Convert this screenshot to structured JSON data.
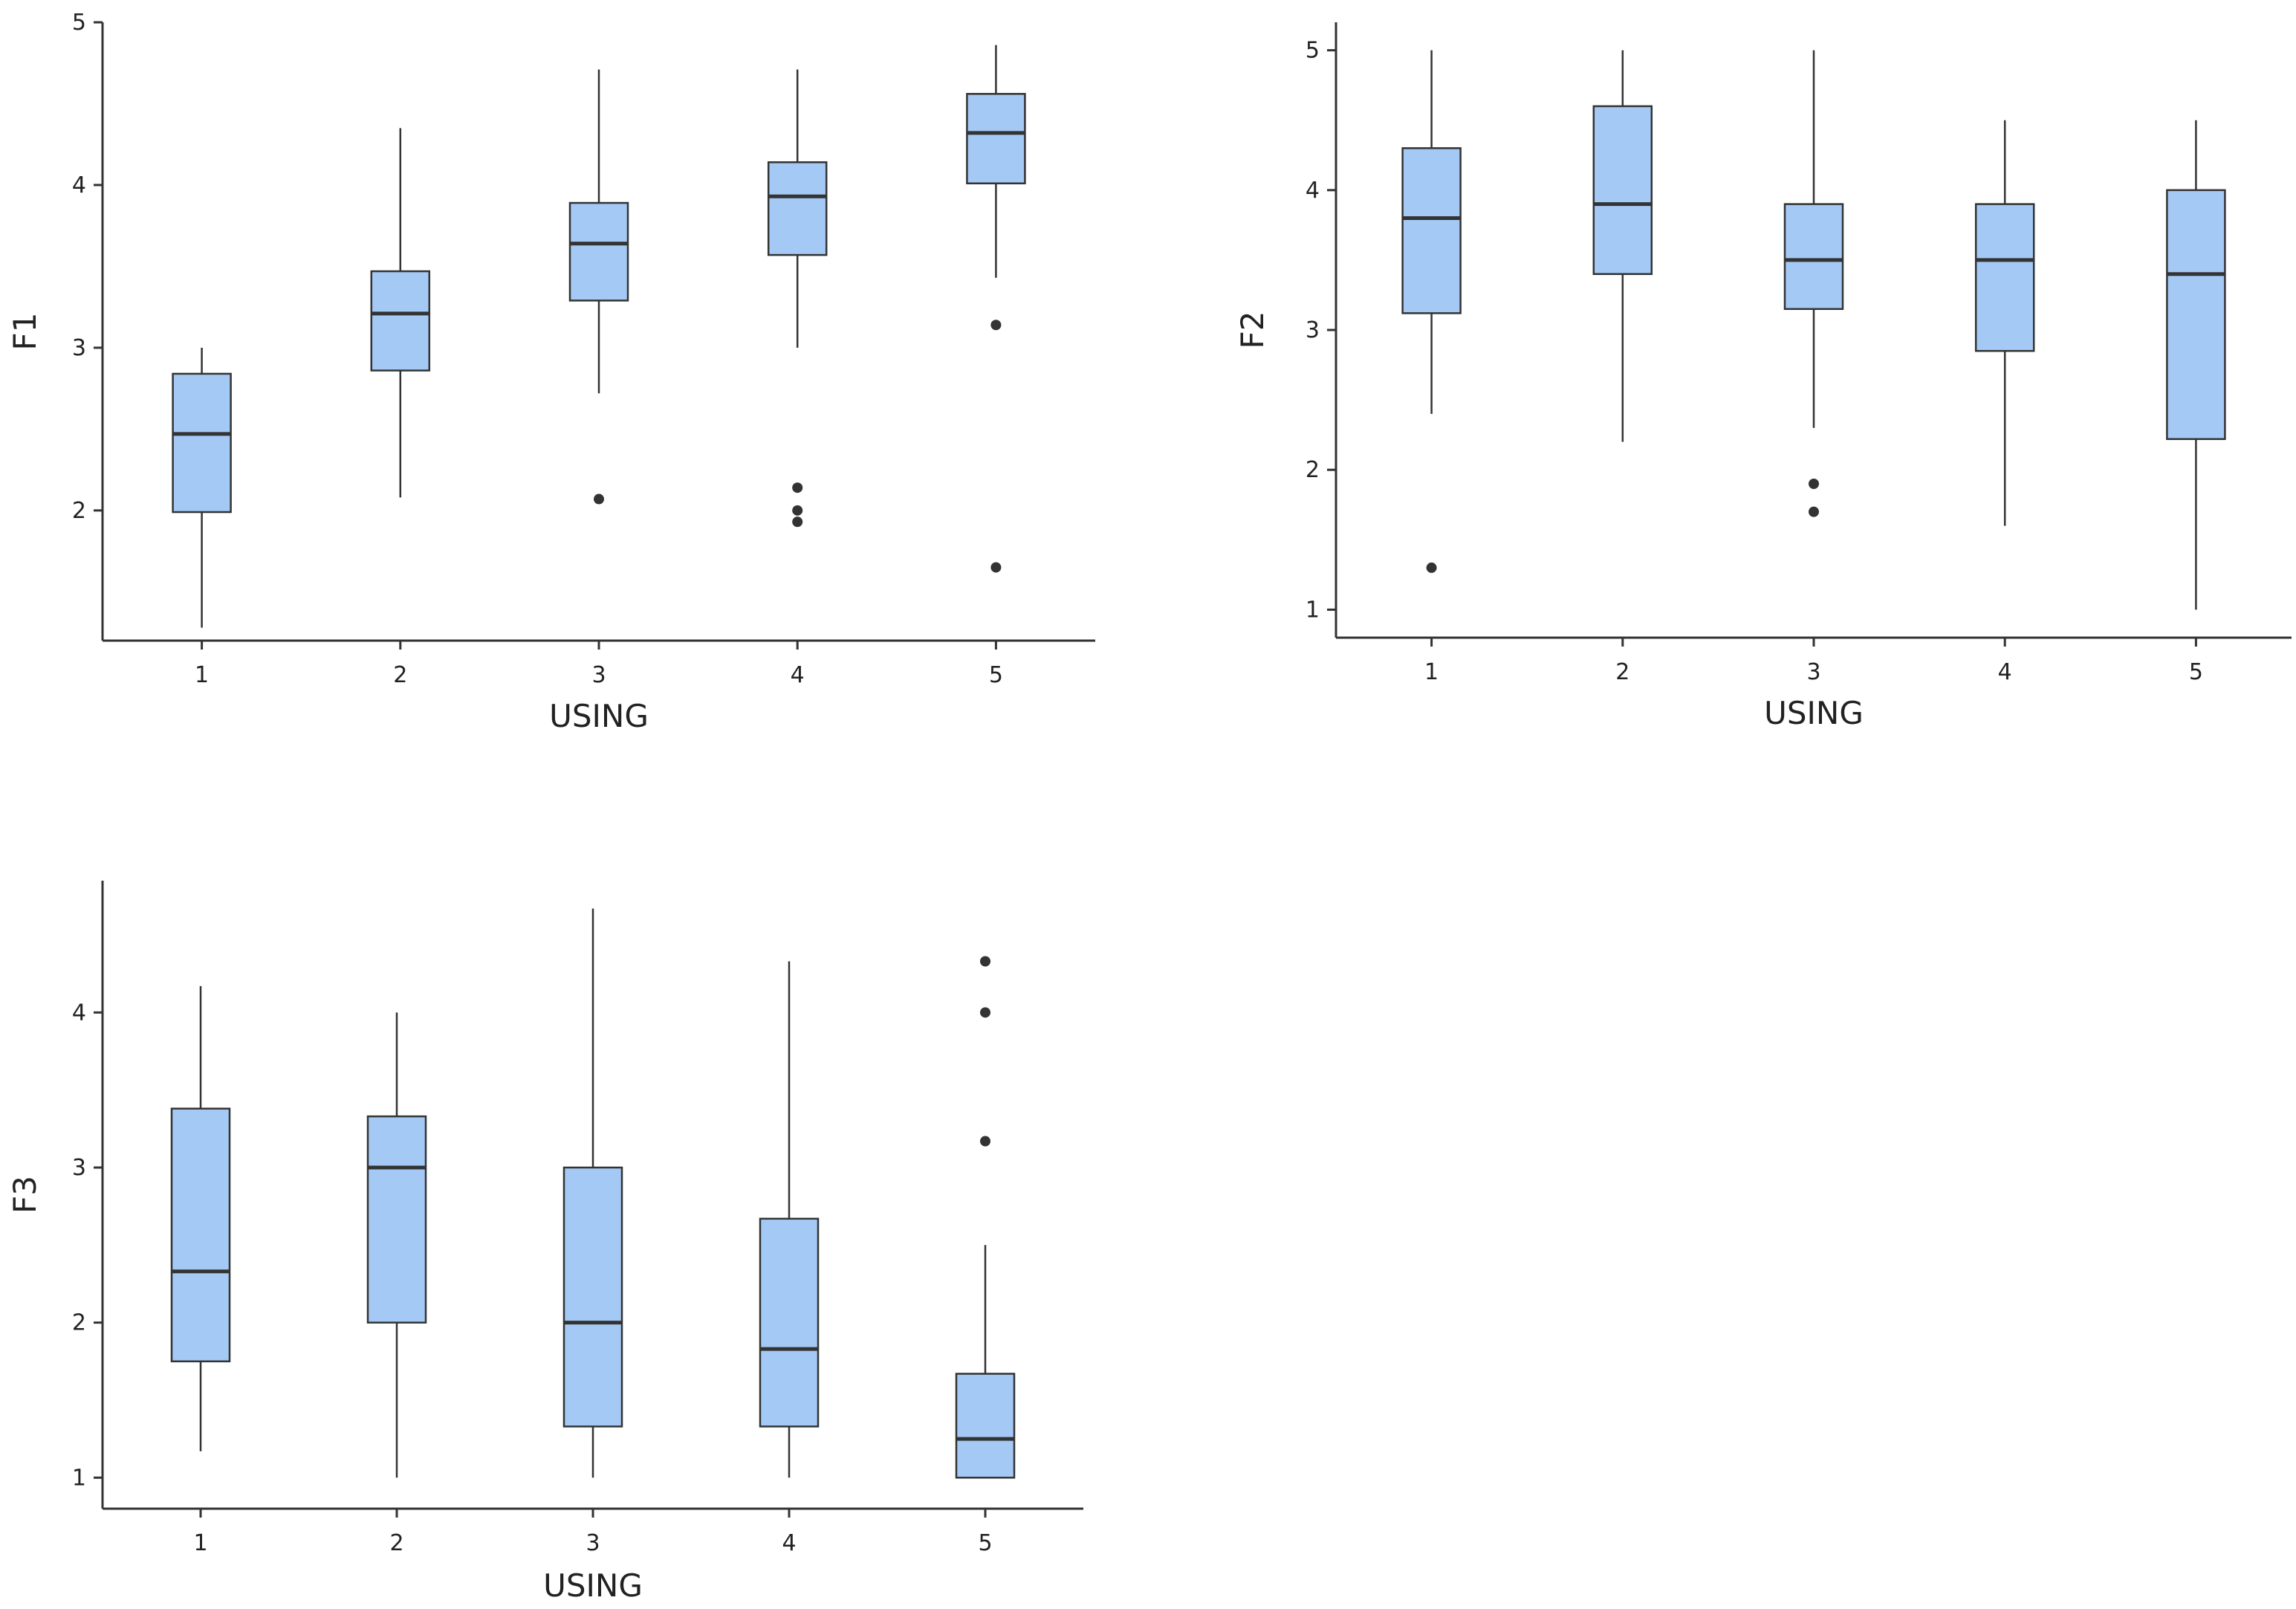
{
  "chart_data": [
    {
      "type": "boxplot",
      "xlabel": "USING",
      "ylabel": "F1",
      "categories": [
        "1",
        "2",
        "3",
        "4",
        "5"
      ],
      "ylim": [
        1.2,
        5.0
      ],
      "yticks": [
        2,
        3,
        4,
        5
      ],
      "grid": false,
      "box_color": "#a4c9f4",
      "boxes": [
        {
          "category": "1",
          "whisker_low": 1.28,
          "q1": 1.99,
          "median": 2.47,
          "q3": 2.84,
          "whisker_high": 3.0,
          "outliers": []
        },
        {
          "category": "2",
          "whisker_low": 2.08,
          "q1": 2.86,
          "median": 3.21,
          "q3": 3.47,
          "whisker_high": 4.35,
          "outliers": []
        },
        {
          "category": "3",
          "whisker_low": 2.72,
          "q1": 3.29,
          "median": 3.64,
          "q3": 3.89,
          "whisker_high": 4.71,
          "outliers": [
            2.07
          ]
        },
        {
          "category": "4",
          "whisker_low": 3.0,
          "q1": 3.57,
          "median": 3.93,
          "q3": 4.14,
          "whisker_high": 4.71,
          "outliers": [
            2.14,
            2.0,
            1.93
          ]
        },
        {
          "category": "5",
          "whisker_low": 3.43,
          "q1": 4.01,
          "median": 4.32,
          "q3": 4.56,
          "whisker_high": 4.86,
          "outliers": [
            3.14,
            1.65
          ]
        }
      ]
    },
    {
      "type": "boxplot",
      "xlabel": "USING",
      "ylabel": "F2",
      "categories": [
        "1",
        "2",
        "3",
        "4",
        "5"
      ],
      "ylim": [
        0.8,
        5.2
      ],
      "yticks": [
        1,
        2,
        3,
        4,
        5
      ],
      "grid": false,
      "box_color": "#a4c9f4",
      "boxes": [
        {
          "category": "1",
          "whisker_low": 2.4,
          "q1": 3.12,
          "median": 3.8,
          "q3": 4.3,
          "whisker_high": 5.0,
          "outliers": [
            1.3
          ]
        },
        {
          "category": "2",
          "whisker_low": 2.2,
          "q1": 3.4,
          "median": 3.9,
          "q3": 4.6,
          "whisker_high": 5.0,
          "outliers": []
        },
        {
          "category": "3",
          "whisker_low": 2.3,
          "q1": 3.15,
          "median": 3.5,
          "q3": 3.9,
          "whisker_high": 5.0,
          "outliers": [
            1.9,
            1.7
          ]
        },
        {
          "category": "4",
          "whisker_low": 1.6,
          "q1": 2.85,
          "median": 3.5,
          "q3": 3.9,
          "whisker_high": 4.5,
          "outliers": []
        },
        {
          "category": "5",
          "whisker_low": 1.0,
          "q1": 2.22,
          "median": 3.4,
          "q3": 4.0,
          "whisker_high": 4.5,
          "outliers": []
        }
      ]
    },
    {
      "type": "boxplot",
      "xlabel": "USING",
      "ylabel": "F3",
      "categories": [
        "1",
        "2",
        "3",
        "4",
        "5"
      ],
      "ylim": [
        0.8,
        4.85
      ],
      "yticks": [
        1,
        2,
        3,
        4
      ],
      "grid": false,
      "box_color": "#a4c9f4",
      "boxes": [
        {
          "category": "1",
          "whisker_low": 1.17,
          "q1": 1.75,
          "median": 2.33,
          "q3": 3.38,
          "whisker_high": 4.17,
          "outliers": []
        },
        {
          "category": "2",
          "whisker_low": 1.0,
          "q1": 2.0,
          "median": 3.0,
          "q3": 3.33,
          "whisker_high": 4.0,
          "outliers": []
        },
        {
          "category": "3",
          "whisker_low": 1.0,
          "q1": 1.33,
          "median": 2.0,
          "q3": 3.0,
          "whisker_high": 4.67,
          "outliers": []
        },
        {
          "category": "4",
          "whisker_low": 1.0,
          "q1": 1.33,
          "median": 1.83,
          "q3": 2.67,
          "whisker_high": 4.33,
          "outliers": []
        },
        {
          "category": "5",
          "whisker_low": 1.0,
          "q1": 1.0,
          "median": 1.25,
          "q3": 1.67,
          "whisker_high": 2.5,
          "outliers": [
            4.33,
            4.0,
            3.17
          ]
        }
      ]
    }
  ]
}
